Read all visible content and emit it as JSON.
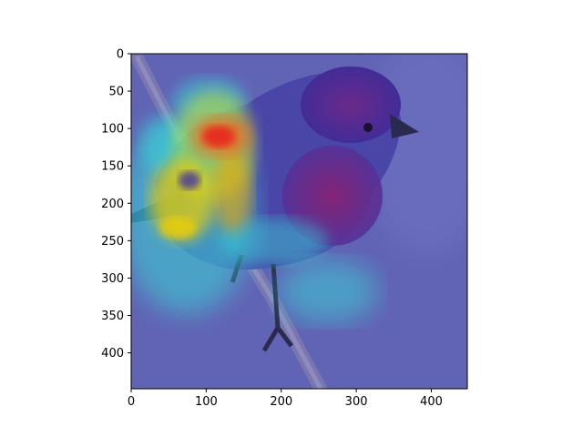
{
  "chart_data": {
    "type": "heatmap",
    "description_kind": "image-with-axes",
    "x_ticks": [
      0,
      100,
      200,
      300,
      400
    ],
    "y_ticks": [
      0,
      50,
      100,
      150,
      200,
      250,
      300,
      350,
      400
    ],
    "xlim": [
      0,
      448
    ],
    "ylim": [
      448,
      0
    ],
    "title": "",
    "xlabel": "",
    "ylabel": "",
    "grid": false
  },
  "colors": {
    "overlay_base": "#5a5fb0",
    "heat_red": "#e8201a",
    "heat_yellow": "#f1d000",
    "heat_cyan": "#38d7d8",
    "bird_head": "#5a2a8f",
    "bird_breast": "#8a2a7a"
  }
}
